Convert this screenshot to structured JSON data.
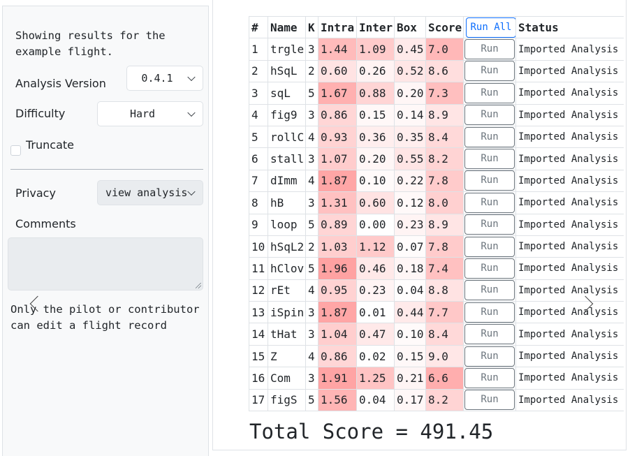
{
  "sidebar": {
    "info_text": "Showing results for the example flight.",
    "analysis_version": {
      "label": "Analysis Version",
      "value": "0.4.1"
    },
    "difficulty": {
      "label": "Difficulty",
      "value": "Hard"
    },
    "truncate": {
      "label": "Truncate",
      "checked": false
    },
    "privacy": {
      "label": "Privacy",
      "value": "view analysis"
    },
    "comments": {
      "label": "Comments",
      "value": ""
    },
    "edit_note": "Only the pilot or contributor can edit a flight record"
  },
  "table": {
    "headers": [
      "#",
      "Name",
      "K",
      "Intra",
      "Inter",
      "Box",
      "Score",
      "Status"
    ],
    "run_all_label": "Run All",
    "run_label": "Run",
    "rows": [
      {
        "n": "1",
        "name": "trgle",
        "k": "3",
        "intra": "1.44",
        "inter": "1.09",
        "box": "0.45",
        "score": "7.0",
        "status": "Imported Analysis a"
      },
      {
        "n": "2",
        "name": "hSqL",
        "k": "2",
        "intra": "0.60",
        "inter": "0.26",
        "box": "0.52",
        "score": "8.6",
        "status": "Imported Analysis a"
      },
      {
        "n": "3",
        "name": "sqL",
        "k": "5",
        "intra": "1.67",
        "inter": "0.88",
        "box": "0.20",
        "score": "7.3",
        "status": "Imported Analysis a"
      },
      {
        "n": "4",
        "name": "fig9",
        "k": "3",
        "intra": "0.86",
        "inter": "0.15",
        "box": "0.14",
        "score": "8.9",
        "status": "Imported Analysis a"
      },
      {
        "n": "5",
        "name": "rollC",
        "k": "4",
        "intra": "0.93",
        "inter": "0.36",
        "box": "0.35",
        "score": "8.4",
        "status": "Imported Analysis a"
      },
      {
        "n": "6",
        "name": "stall",
        "k": "3",
        "intra": "1.07",
        "inter": "0.20",
        "box": "0.55",
        "score": "8.2",
        "status": "Imported Analysis a"
      },
      {
        "n": "7",
        "name": "dImm",
        "k": "4",
        "intra": "1.87",
        "inter": "0.10",
        "box": "0.22",
        "score": "7.8",
        "status": "Imported Analysis a"
      },
      {
        "n": "8",
        "name": "hB",
        "k": "3",
        "intra": "1.31",
        "inter": "0.60",
        "box": "0.12",
        "score": "8.0",
        "status": "Imported Analysis a"
      },
      {
        "n": "9",
        "name": "loop",
        "k": "5",
        "intra": "0.89",
        "inter": "0.00",
        "box": "0.23",
        "score": "8.9",
        "status": "Imported Analysis a"
      },
      {
        "n": "10",
        "name": "hSqL2",
        "k": "2",
        "intra": "1.03",
        "inter": "1.12",
        "box": "0.07",
        "score": "7.8",
        "status": "Imported Analysis a"
      },
      {
        "n": "11",
        "name": "hClov",
        "k": "5",
        "intra": "1.96",
        "inter": "0.46",
        "box": "0.18",
        "score": "7.4",
        "status": "Imported Analysis a"
      },
      {
        "n": "12",
        "name": "rEt",
        "k": "4",
        "intra": "0.95",
        "inter": "0.23",
        "box": "0.04",
        "score": "8.8",
        "status": "Imported Analysis a"
      },
      {
        "n": "13",
        "name": "iSpin",
        "k": "3",
        "intra": "1.87",
        "inter": "0.01",
        "box": "0.44",
        "score": "7.7",
        "status": "Imported Analysis a"
      },
      {
        "n": "14",
        "name": "tHat",
        "k": "3",
        "intra": "1.04",
        "inter": "0.47",
        "box": "0.10",
        "score": "8.4",
        "status": "Imported Analysis a"
      },
      {
        "n": "15",
        "name": "Z",
        "k": "4",
        "intra": "0.86",
        "inter": "0.02",
        "box": "0.15",
        "score": "9.0",
        "status": "Imported Analysis a"
      },
      {
        "n": "16",
        "name": "Com",
        "k": "3",
        "intra": "1.91",
        "inter": "1.25",
        "box": "0.21",
        "score": "6.6",
        "status": "Imported Analysis a"
      },
      {
        "n": "17",
        "name": "figS",
        "k": "5",
        "intra": "1.56",
        "inter": "0.04",
        "box": "0.17",
        "score": "8.2",
        "status": "Imported Analysis a"
      }
    ]
  },
  "total_score": "Total Score = 491.45",
  "icons": {
    "select_chevron": "chevron-down-icon",
    "prev": "chevron-left-icon",
    "next": "chevron-right-icon"
  },
  "colors": {
    "heat": "#f4a3a3",
    "primary": "#0d6efd",
    "secondary": "#6c757d"
  }
}
